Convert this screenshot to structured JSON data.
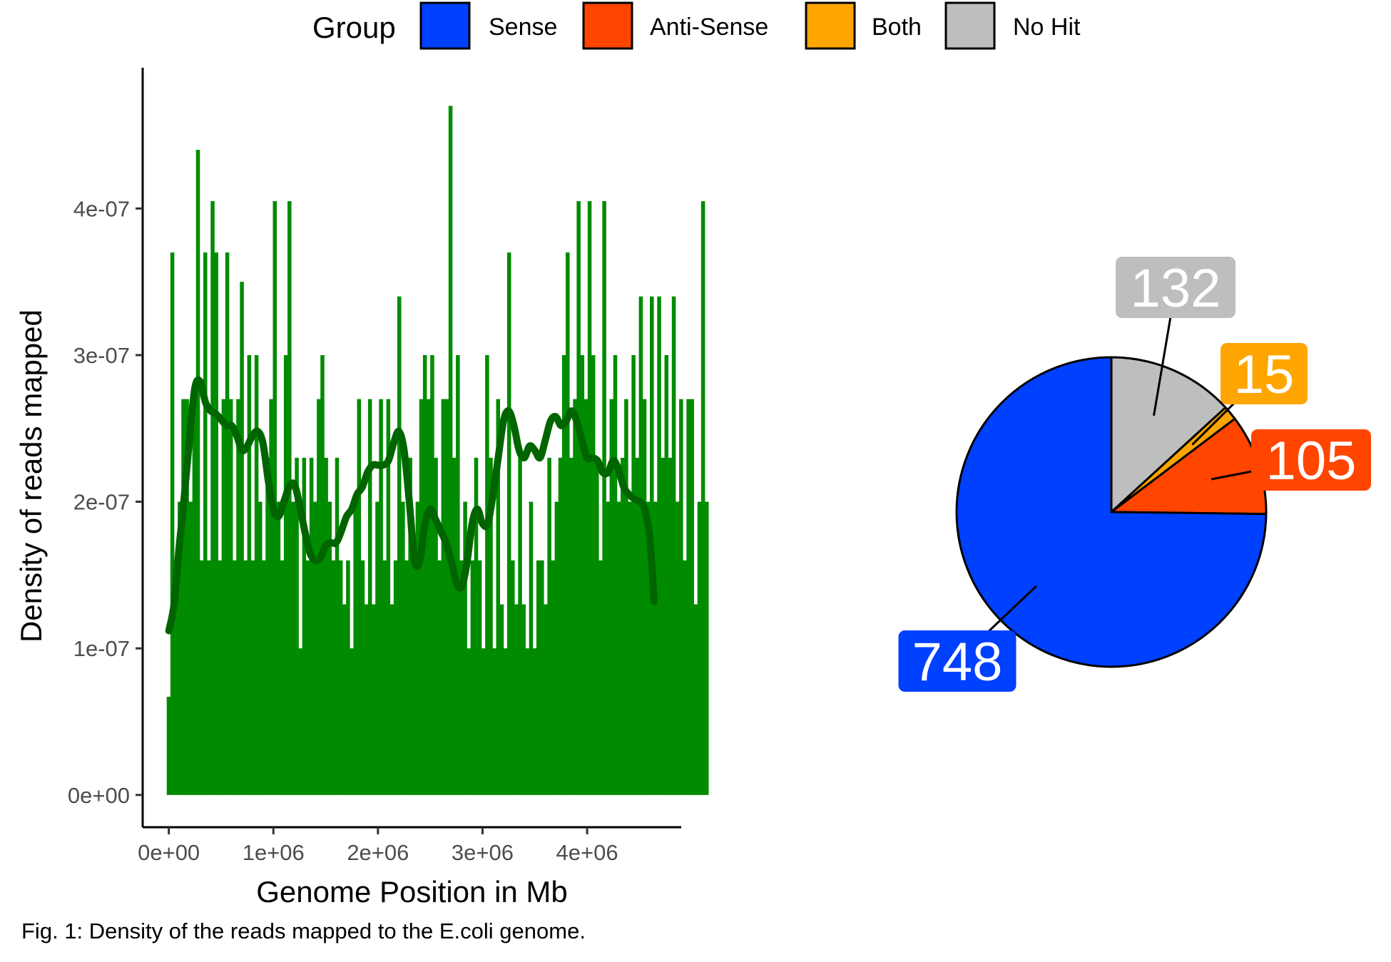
{
  "legend": {
    "title": "Group",
    "items": [
      {
        "label": "Sense",
        "color": "#0040FF"
      },
      {
        "label": "Anti-Sense",
        "color": "#FF4500"
      },
      {
        "label": "Both",
        "color": "#FFA500"
      },
      {
        "label": "No Hit",
        "color": "#BEBEBE"
      }
    ]
  },
  "caption": "Fig. 1: Density of the reads mapped to the E.coli genome.",
  "chart_data": [
    {
      "type": "bar",
      "title": "",
      "xlabel": "Genome Position in Mb",
      "ylabel": "Density of reads mapped",
      "xlim": [
        -250000,
        4900000
      ],
      "ylim": [
        -2.2e-08,
        4.96e-07
      ],
      "x_ticks": [
        {
          "value": 0,
          "label": "0e+00"
        },
        {
          "value": 1000000,
          "label": "1e+06"
        },
        {
          "value": 2000000,
          "label": "2e+06"
        },
        {
          "value": 3000000,
          "label": "3e+06"
        },
        {
          "value": 4000000,
          "label": "4e+06"
        }
      ],
      "y_ticks": [
        {
          "value": 0,
          "label": "0e+00"
        },
        {
          "value": 1e-07,
          "label": "1e-07"
        },
        {
          "value": 2e-07,
          "label": "2e-07"
        },
        {
          "value": 3e-07,
          "label": "3e-07"
        },
        {
          "value": 4e-07,
          "label": "4e-07"
        }
      ],
      "bar_color": "#008B00",
      "line_color": "#006400",
      "bin_width": 35000,
      "x_start": -20000,
      "bars": [
        0.67,
        3.7,
        1.6,
        2.0,
        2.7,
        2.7,
        2.0,
        2.7,
        4.4,
        1.6,
        3.7,
        1.6,
        4.05,
        3.7,
        1.6,
        2.7,
        3.7,
        2.7,
        1.6,
        2.7,
        3.5,
        1.6,
        3.0,
        1.6,
        3.0,
        2.0,
        1.6,
        2.3,
        2.7,
        4.05,
        2.0,
        1.6,
        3.0,
        4.05,
        2.0,
        2.3,
        1.0,
        2.3,
        1.6,
        2.3,
        2.0,
        2.7,
        3.0,
        2.3,
        2.0,
        1.6,
        2.3,
        1.6,
        1.3,
        1.6,
        1.0,
        2.0,
        2.7,
        1.6,
        1.3,
        2.7,
        1.3,
        2.0,
        2.7,
        1.6,
        2.7,
        1.3,
        1.6,
        3.4,
        2.0,
        1.6,
        2.3,
        1.6,
        2.0,
        2.7,
        3.0,
        2.7,
        3.0,
        2.3,
        1.6,
        2.7,
        2.7,
        4.7,
        2.3,
        3.0,
        1.6,
        2.0,
        1.0,
        1.6,
        2.3,
        1.6,
        1.0,
        3.0,
        2.3,
        1.0,
        2.7,
        1.3,
        1.0,
        3.7,
        1.6,
        1.3,
        2.3,
        1.3,
        1.0,
        2.0,
        1.0,
        1.6,
        1.6,
        1.3,
        2.3,
        1.6,
        2.0,
        2.3,
        3.0,
        3.7,
        2.3,
        2.7,
        4.05,
        3.0,
        2.7,
        4.05,
        3.0,
        2.3,
        1.6,
        4.05,
        2.0,
        2.7,
        3.0,
        2.0,
        2.3,
        2.7,
        2.0,
        3.0,
        2.3,
        3.4,
        2.7,
        2.0,
        3.4,
        2.0,
        3.4,
        2.3,
        3.0,
        2.3,
        3.4,
        2.0,
        2.7,
        1.6,
        2.7,
        2.7,
        1.3,
        2.0,
        4.05,
        2.0
      ]
    },
    {
      "type": "line",
      "series": [
        {
          "x": [
            0,
            50000,
            100000,
            150000,
            200000,
            250000,
            300000,
            350000,
            400000,
            450000,
            500000,
            550000,
            600000,
            650000,
            700000,
            750000,
            800000,
            850000,
            900000,
            950000,
            1000000,
            1050000,
            1100000,
            1150000,
            1200000,
            1250000,
            1300000,
            1350000,
            1400000,
            1450000,
            1500000,
            1550000,
            1600000,
            1650000,
            1700000,
            1750000,
            1800000,
            1850000,
            1900000,
            1950000,
            2000000,
            2050000,
            2100000,
            2150000,
            2200000,
            2250000,
            2300000,
            2350000,
            2400000,
            2450000,
            2500000,
            2550000,
            2600000,
            2650000,
            2700000,
            2750000,
            2800000,
            2850000,
            2900000,
            2950000,
            3000000,
            3050000,
            3100000,
            3150000,
            3200000,
            3250000,
            3300000,
            3350000,
            3400000,
            3450000,
            3500000,
            3550000,
            3600000,
            3650000,
            3700000,
            3750000,
            3800000,
            3850000,
            3900000,
            3950000,
            4000000,
            4050000,
            4100000,
            4150000,
            4200000,
            4250000,
            4300000,
            4350000,
            4400000,
            4450000,
            4500000,
            4550000,
            4600000,
            4641000
          ],
          "y": [
            1.12,
            1.3,
            1.7,
            2.05,
            2.45,
            2.78,
            2.82,
            2.68,
            2.62,
            2.6,
            2.56,
            2.52,
            2.52,
            2.45,
            2.35,
            2.38,
            2.45,
            2.48,
            2.4,
            2.15,
            1.95,
            1.9,
            2.0,
            2.1,
            2.12,
            1.98,
            1.8,
            1.65,
            1.6,
            1.62,
            1.7,
            1.72,
            1.72,
            1.8,
            1.9,
            1.95,
            2.05,
            2.1,
            2.2,
            2.25,
            2.25,
            2.25,
            2.28,
            2.4,
            2.48,
            2.35,
            2.0,
            1.6,
            1.6,
            1.85,
            1.95,
            1.88,
            1.8,
            1.72,
            1.6,
            1.45,
            1.42,
            1.58,
            1.85,
            1.95,
            1.85,
            1.85,
            2.05,
            2.3,
            2.55,
            2.62,
            2.52,
            2.35,
            2.3,
            2.38,
            2.35,
            2.3,
            2.42,
            2.55,
            2.58,
            2.52,
            2.55,
            2.62,
            2.55,
            2.42,
            2.3,
            2.3,
            2.28,
            2.2,
            2.2,
            2.28,
            2.22,
            2.1,
            2.05,
            2.02,
            2.0,
            1.95,
            1.75,
            1.32
          ]
        }
      ]
    },
    {
      "type": "pie",
      "slices": [
        {
          "label": "Sense",
          "value": 748,
          "text": "748",
          "color": "#0040FF"
        },
        {
          "label": "Anti-Sense",
          "value": 105,
          "text": "105",
          "color": "#FF4500"
        },
        {
          "label": "Both",
          "value": 15,
          "text": "15",
          "color": "#FFA500"
        },
        {
          "label": "No Hit",
          "value": 132,
          "text": "132",
          "color": "#BEBEBE"
        }
      ]
    }
  ]
}
